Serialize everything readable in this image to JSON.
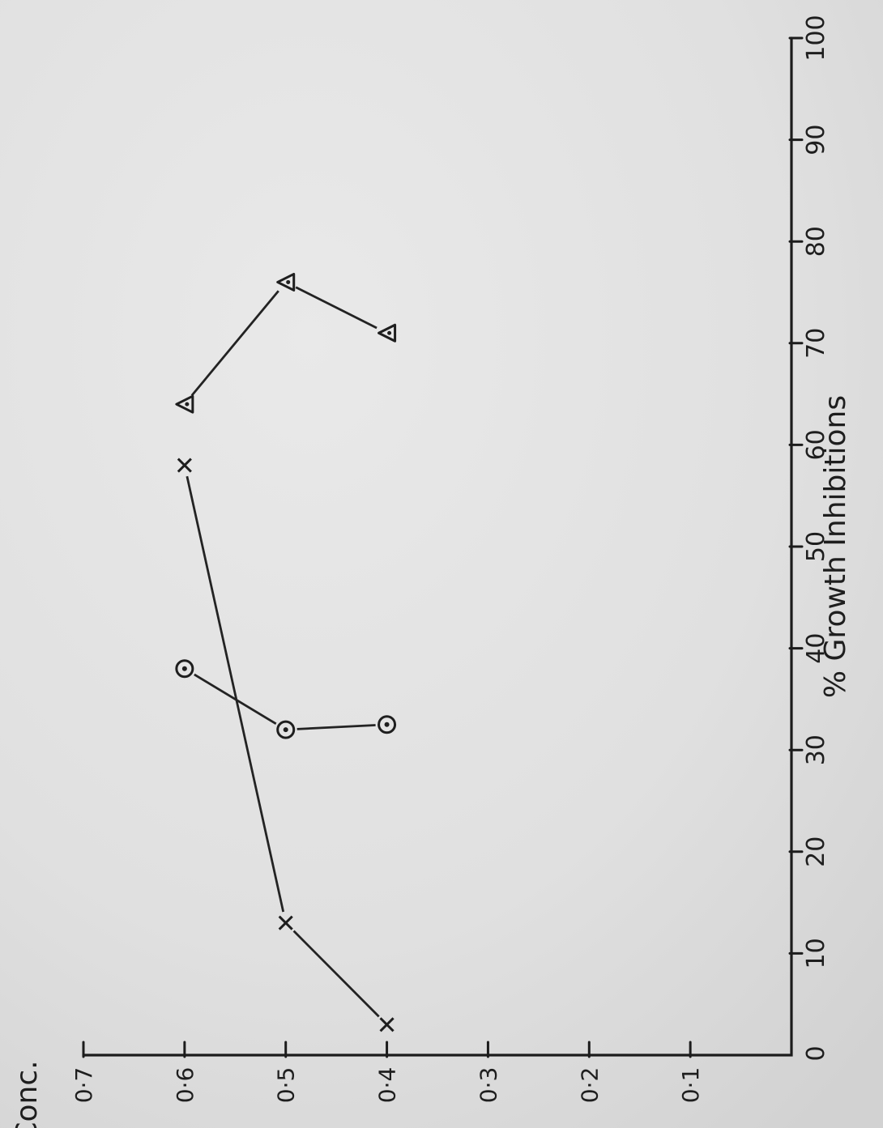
{
  "chart_data": {
    "type": "scatter",
    "orientation": "rotated 90° counter-clockwise",
    "x_axis": {
      "label": "% Growth Inhibitions",
      "range": [
        0,
        100
      ],
      "ticks": [
        "0",
        "10",
        "20",
        "30",
        "40",
        "50",
        "60",
        "70",
        "80",
        "90",
        "100"
      ],
      "tick_values": [
        0,
        10,
        20,
        30,
        40,
        50,
        60,
        70,
        80,
        90,
        100
      ]
    },
    "y_axis": {
      "label": "Conc.",
      "range": [
        0,
        0.7
      ],
      "ticks": [
        "0·1",
        "0·2",
        "0·3",
        "0·4",
        "0·5",
        "0·6",
        "0·7"
      ],
      "tick_values": [
        0.1,
        0.2,
        0.3,
        0.4,
        0.5,
        0.6,
        0.7
      ]
    },
    "grid": false,
    "legend": "none",
    "series": [
      {
        "marker": "cross",
        "points": [
          [
            3,
            0.4
          ],
          [
            13,
            0.5
          ],
          [
            58,
            0.6
          ]
        ]
      },
      {
        "marker": "circle-dot",
        "points": [
          [
            38,
            0.6
          ],
          [
            32,
            0.5
          ],
          [
            32.5,
            0.4
          ]
        ]
      },
      {
        "marker": "triangle",
        "points": [
          [
            64,
            0.6
          ],
          [
            76,
            0.5
          ],
          [
            71,
            0.4
          ]
        ]
      }
    ],
    "colors": {
      "ink": "#1e1e1e",
      "paper": "#dcdcdc"
    }
  }
}
